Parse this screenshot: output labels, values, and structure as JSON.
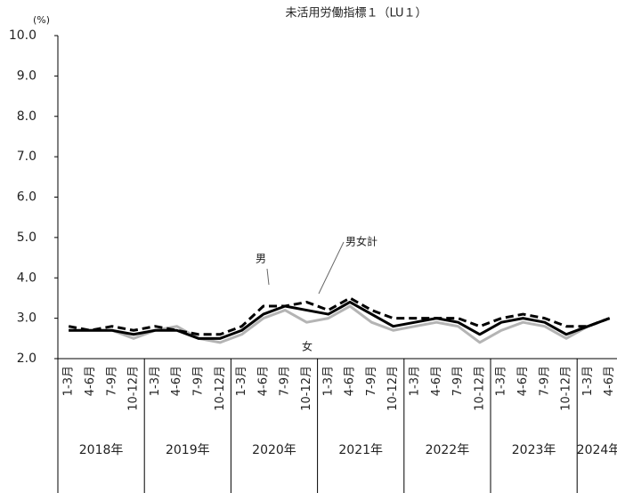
{
  "chart_data": {
    "type": "line",
    "title": "未活用労働指標１（LU１）",
    "y_unit": "(%)",
    "groups": [
      {
        "label": "2018年",
        "categories": [
          "1-3月",
          "4-6月",
          "7-9月",
          "10-12月"
        ]
      },
      {
        "label": "2019年",
        "categories": [
          "1-3月",
          "4-6月",
          "7-9月",
          "10-12月"
        ]
      },
      {
        "label": "2020年",
        "categories": [
          "1-3月",
          "4-6月",
          "7-9月",
          "10-12月"
        ]
      },
      {
        "label": "2021年",
        "categories": [
          "1-3月",
          "4-6月",
          "7-9月",
          "10-12月"
        ]
      },
      {
        "label": "2022年",
        "categories": [
          "1-3月",
          "4-6月",
          "7-9月",
          "10-12月"
        ]
      },
      {
        "label": "2023年",
        "categories": [
          "1-3月",
          "4-6月",
          "7-9月",
          "10-12月"
        ]
      },
      {
        "label": "2024年",
        "categories": [
          "1-3月",
          "4-6月"
        ]
      }
    ],
    "series": [
      {
        "name": "女",
        "color": "#b4b4b4",
        "dash": false,
        "values": [
          2.7,
          2.7,
          2.7,
          2.5,
          2.7,
          2.8,
          2.5,
          2.4,
          2.6,
          3.0,
          3.2,
          2.9,
          3.0,
          3.3,
          2.9,
          2.7,
          2.8,
          2.9,
          2.8,
          2.4,
          2.7,
          2.9,
          2.8,
          2.5,
          2.8,
          3.0
        ]
      },
      {
        "name": "男女計",
        "color": "#000000",
        "dash": true,
        "values": [
          2.8,
          2.7,
          2.8,
          2.7,
          2.8,
          2.7,
          2.6,
          2.6,
          2.8,
          3.3,
          3.3,
          3.4,
          3.2,
          3.5,
          3.2,
          3.0,
          3.0,
          3.0,
          3.0,
          2.8,
          3.0,
          3.1,
          3.0,
          2.8,
          2.8,
          3.0
        ]
      },
      {
        "name": "男",
        "color": "#000000",
        "dash": false,
        "values": [
          2.7,
          2.7,
          2.7,
          2.6,
          2.7,
          2.7,
          2.5,
          2.5,
          2.7,
          3.1,
          3.3,
          3.2,
          3.1,
          3.4,
          3.1,
          2.8,
          2.9,
          3.0,
          2.9,
          2.6,
          2.9,
          3.0,
          2.9,
          2.6,
          2.8,
          3.0
        ]
      }
    ],
    "ylim": [
      2,
      10
    ],
    "yticks": [
      {
        "value": 2,
        "label": "2.0"
      },
      {
        "value": 3,
        "label": "3.0"
      },
      {
        "value": 4,
        "label": "4.0"
      },
      {
        "value": 5,
        "label": "5.0"
      },
      {
        "value": 6,
        "label": "6.0"
      },
      {
        "value": 7,
        "label": "7.0"
      },
      {
        "value": 8,
        "label": "8.0"
      },
      {
        "value": 9,
        "label": "9.0"
      },
      {
        "value": 10,
        "label": "10.0"
      }
    ],
    "grid": false
  }
}
